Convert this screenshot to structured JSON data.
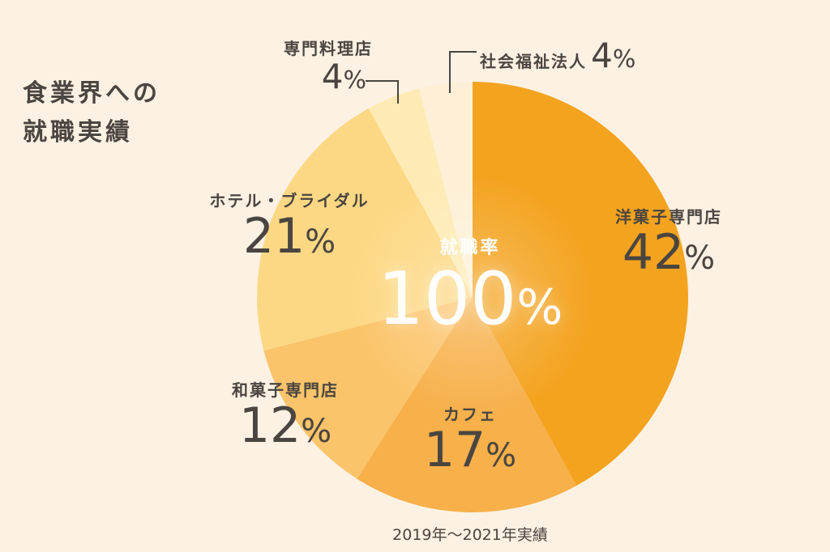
{
  "title_lines": [
    "食業界への",
    "就職実績"
  ],
  "center": {
    "label": "就職率",
    "value": "100",
    "unit": "%"
  },
  "footnote": "2019年〜2021年実績",
  "colors": {
    "background": "#fdf1e3",
    "western": "#f4a31f",
    "cafe": "#f7b04a",
    "japanese": "#fbc46a",
    "hotel": "#fdd884",
    "specialty": "#feeab4",
    "welfare": "#fdf0d6"
  },
  "chart_data": {
    "type": "pie",
    "title": "",
    "slices": [
      {
        "label": "洋菓子専門店",
        "value": 42,
        "display": "42",
        "unit": "%",
        "color_key": "western"
      },
      {
        "label": "カフェ",
        "value": 17,
        "display": "17",
        "unit": "%",
        "color_key": "cafe"
      },
      {
        "label": "和菓子専門店",
        "value": 12,
        "display": "12",
        "unit": "%",
        "color_key": "japanese"
      },
      {
        "label": "ホテル・ブライダル",
        "value": 21,
        "display": "21",
        "unit": "%",
        "color_key": "hotel"
      },
      {
        "label": "専門料理店",
        "value": 4,
        "display": "4",
        "unit": "%",
        "color_key": "specialty"
      },
      {
        "label": "社会福祉法人",
        "value": 4,
        "display": "4",
        "unit": "%",
        "color_key": "welfare"
      }
    ]
  }
}
